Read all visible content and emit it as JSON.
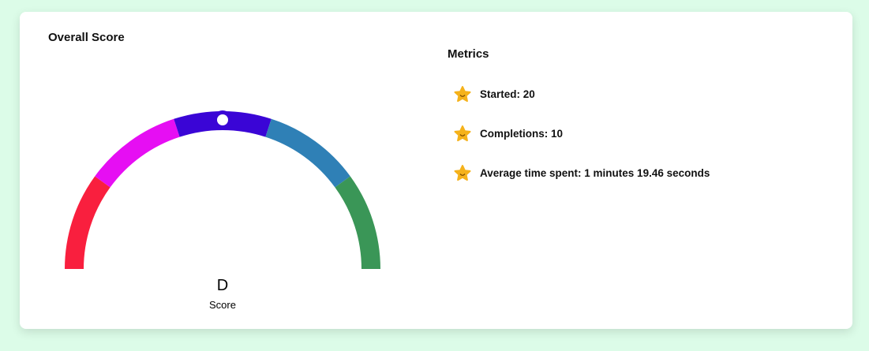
{
  "score_panel": {
    "title": "Overall Score",
    "grade": "D",
    "grade_label": "Score"
  },
  "metrics": {
    "title": "Metrics",
    "items": [
      "Started: 20",
      "Completions: 10",
      "Average time spent: 1 minutes 19.46 seconds"
    ]
  }
}
